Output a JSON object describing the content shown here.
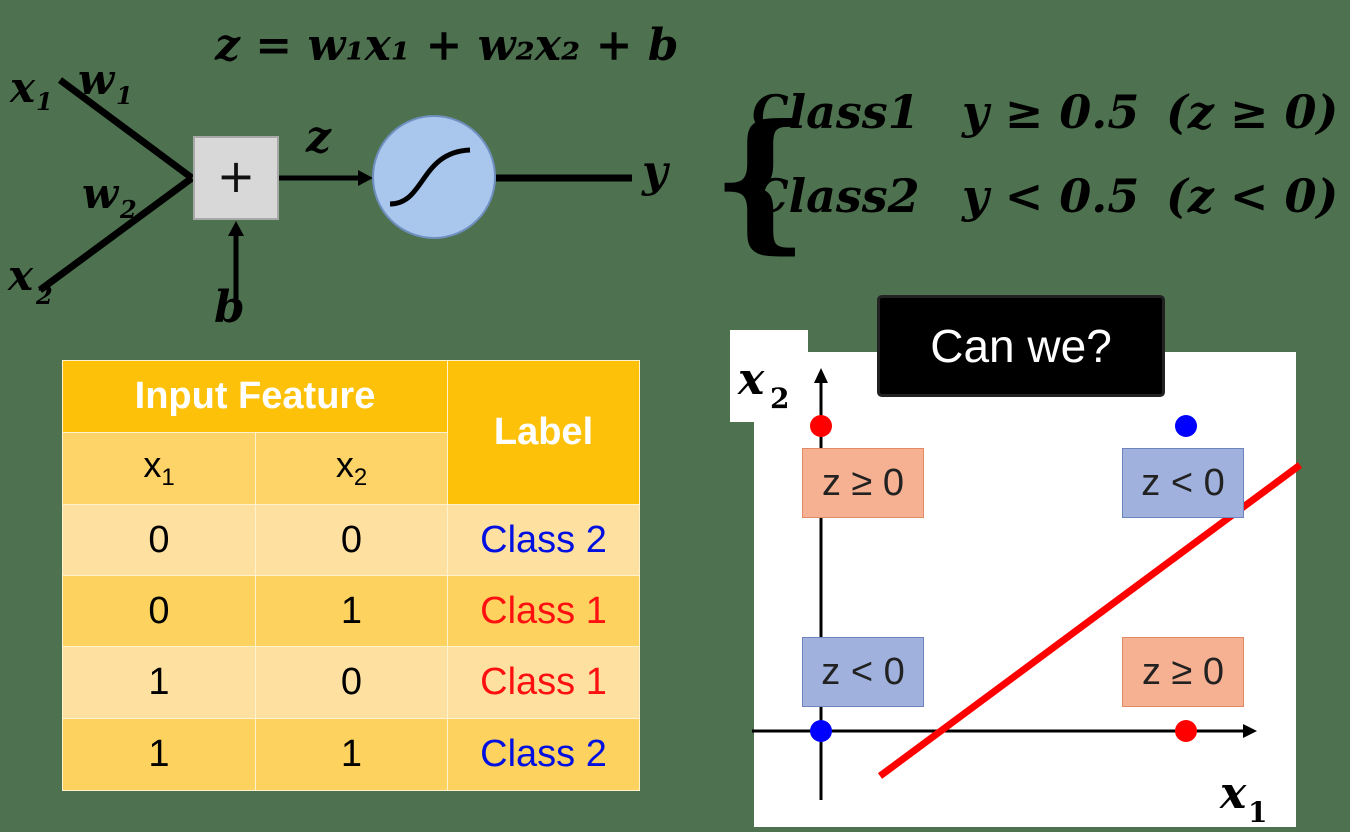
{
  "formula": {
    "z_equation": "z = w₁x₁ + w₂x₂ + b",
    "x1": "x",
    "x1_sub": "1",
    "w1": "w",
    "w1_sub": "1",
    "w2": "w",
    "w2_sub": "2",
    "x2": "x",
    "x2_sub": "2",
    "b": "b",
    "z": "z",
    "y": "y",
    "sum_symbol": "+",
    "cases": [
      {
        "class": "Class1",
        "cond": "y ≥ 0.5",
        "zcond": "(z ≥ 0)"
      },
      {
        "class": "Class2",
        "cond": "y < 0.5",
        "zcond": "(z < 0)"
      }
    ]
  },
  "table": {
    "group_header": "Input Feature",
    "label_header": "Label",
    "col1": "x",
    "col1_sub": "1",
    "col2": "x",
    "col2_sub": "2",
    "rows": [
      {
        "x1": "0",
        "x2": "0",
        "label": "Class 2"
      },
      {
        "x1": "0",
        "x2": "1",
        "label": "Class 1"
      },
      {
        "x1": "1",
        "x2": "0",
        "label": "Class 1"
      },
      {
        "x1": "1",
        "x2": "1",
        "label": "Class 2"
      }
    ]
  },
  "callout": "Can we?",
  "plot": {
    "xlabel": "x",
    "xlabel_sub": "1",
    "ylabel": "x",
    "ylabel_sub": "2",
    "regions": {
      "top_left": "z ≥ 0",
      "top_right": "z < 0",
      "bottom_left": "z < 0",
      "bottom_right": "z ≥ 0"
    }
  },
  "chart_data": {
    "type": "scatter",
    "series": [
      {
        "name": "Class 1",
        "color": "#ff0000",
        "points": [
          [
            0,
            1
          ],
          [
            1,
            0
          ]
        ]
      },
      {
        "name": "Class 2",
        "color": "#0000ff",
        "points": [
          [
            0,
            0
          ],
          [
            1,
            1
          ]
        ]
      }
    ],
    "decision_line_color": "#ff0000",
    "xlabel": "x1",
    "ylabel": "x2"
  }
}
